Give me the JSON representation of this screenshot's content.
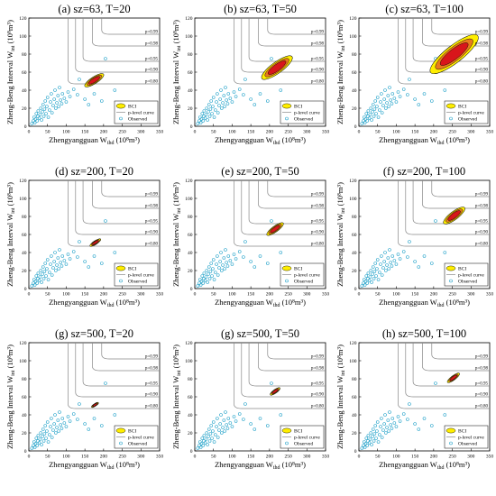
{
  "labels": {
    "xlabel_main": "Zhengyangguan W",
    "xlabel_sub": "thd",
    "xlabel_unit": " (10⁸m³)",
    "ylabel_main": "Zheng-Beng Interval W",
    "ylabel_sub": "int",
    "ylabel_unit": " (10⁸m³)",
    "legend_bci": "BCI",
    "legend_curve": "p-level curve",
    "legend_observed": "Observed",
    "p_levels": [
      "p=0.99",
      "p=0.98",
      "p=0.95",
      "p=0.90",
      "p=0.80"
    ]
  },
  "colors": {
    "bci_outer": "#ffee00",
    "bci_mid": "#e87a1e",
    "bci_inner": "#d8161b",
    "curve": "#888888",
    "observed": "#1ea0c8"
  },
  "chart_data": {
    "type": "scatter",
    "xlim": [
      0,
      350
    ],
    "ylim": [
      0,
      120
    ],
    "xticks": [
      0,
      50,
      100,
      150,
      200,
      250,
      300,
      350
    ],
    "yticks": [
      0,
      20,
      40,
      60,
      80,
      100,
      120
    ],
    "grid": false,
    "legend_position": "bottom-right",
    "p_level_curves": [
      {
        "label": "p=0.99",
        "x_asym": 195,
        "y_asym": 102
      },
      {
        "label": "p=0.98",
        "x_asym": 170,
        "y_asym": 89
      },
      {
        "label": "p=0.95",
        "x_asym": 145,
        "y_asym": 72
      },
      {
        "label": "p=0.90",
        "x_asym": 125,
        "y_asym": 60
      },
      {
        "label": "p=0.80",
        "x_asym": 105,
        "y_asym": 47
      }
    ],
    "observed": [
      {
        "x": 8,
        "y": 3
      },
      {
        "x": 12,
        "y": 6
      },
      {
        "x": 14,
        "y": 10
      },
      {
        "x": 16,
        "y": 4
      },
      {
        "x": 18,
        "y": 8
      },
      {
        "x": 20,
        "y": 14
      },
      {
        "x": 22,
        "y": 6
      },
      {
        "x": 24,
        "y": 11
      },
      {
        "x": 25,
        "y": 17
      },
      {
        "x": 28,
        "y": 9
      },
      {
        "x": 30,
        "y": 13
      },
      {
        "x": 32,
        "y": 20
      },
      {
        "x": 34,
        "y": 7
      },
      {
        "x": 36,
        "y": 16
      },
      {
        "x": 38,
        "y": 24
      },
      {
        "x": 40,
        "y": 11
      },
      {
        "x": 42,
        "y": 19
      },
      {
        "x": 44,
        "y": 28
      },
      {
        "x": 46,
        "y": 14
      },
      {
        "x": 48,
        "y": 22
      },
      {
        "x": 50,
        "y": 32
      },
      {
        "x": 52,
        "y": 10
      },
      {
        "x": 55,
        "y": 18
      },
      {
        "x": 58,
        "y": 27
      },
      {
        "x": 60,
        "y": 36
      },
      {
        "x": 62,
        "y": 15
      },
      {
        "x": 65,
        "y": 23
      },
      {
        "x": 68,
        "y": 30
      },
      {
        "x": 70,
        "y": 40
      },
      {
        "x": 72,
        "y": 20
      },
      {
        "x": 75,
        "y": 26
      },
      {
        "x": 78,
        "y": 34
      },
      {
        "x": 80,
        "y": 22
      },
      {
        "x": 82,
        "y": 43
      },
      {
        "x": 85,
        "y": 29
      },
      {
        "x": 88,
        "y": 25
      },
      {
        "x": 90,
        "y": 36
      },
      {
        "x": 95,
        "y": 31
      },
      {
        "x": 100,
        "y": 27
      },
      {
        "x": 105,
        "y": 38
      },
      {
        "x": 110,
        "y": 33
      },
      {
        "x": 120,
        "y": 41
      },
      {
        "x": 130,
        "y": 35
      },
      {
        "x": 135,
        "y": 52
      },
      {
        "x": 150,
        "y": 30
      },
      {
        "x": 160,
        "y": 24
      },
      {
        "x": 175,
        "y": 36
      },
      {
        "x": 195,
        "y": 28
      },
      {
        "x": 205,
        "y": 75
      },
      {
        "x": 230,
        "y": 40
      }
    ],
    "panels": [
      {
        "title": "(a) sz=63, T=20",
        "cx": 175,
        "cy": 51,
        "rx": 30,
        "ry": 9,
        "angle": 33
      },
      {
        "title": "(b) sz=63, T=50",
        "cx": 220,
        "cy": 65,
        "rx": 50,
        "ry": 15,
        "angle": 36
      },
      {
        "title": "(c) sz=63, T=100",
        "cx": 255,
        "cy": 80,
        "rx": 80,
        "ry": 23,
        "angle": 38
      },
      {
        "title": "(d) sz=200, T=20",
        "cx": 178,
        "cy": 51,
        "rx": 17,
        "ry": 5,
        "angle": 33
      },
      {
        "title": "(e) sz=200, T=50",
        "cx": 215,
        "cy": 66,
        "rx": 27,
        "ry": 8,
        "angle": 36
      },
      {
        "title": "(f) sz=200, T=100",
        "cx": 255,
        "cy": 81,
        "rx": 35,
        "ry": 11,
        "angle": 37
      },
      {
        "title": "(g) sz=500, T=20",
        "cx": 177,
        "cy": 51,
        "rx": 11,
        "ry": 3.5,
        "angle": 33
      },
      {
        "title": "(g) sz=500, T=50",
        "cx": 215,
        "cy": 66,
        "rx": 16,
        "ry": 5,
        "angle": 36
      },
      {
        "title": "(h) sz=500, T=100",
        "cx": 253,
        "cy": 81,
        "rx": 20,
        "ry": 6,
        "angle": 37
      }
    ]
  }
}
